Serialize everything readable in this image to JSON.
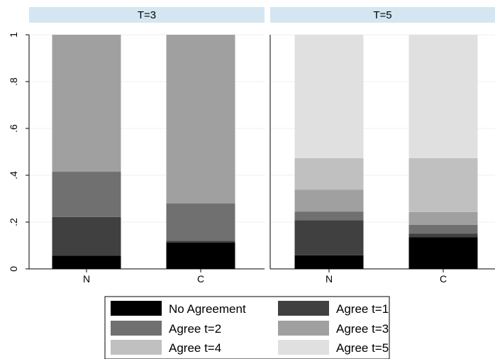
{
  "chart_data": {
    "type": "bar",
    "stacked": true,
    "ylim": [
      0,
      1
    ],
    "yticks": [
      "0",
      ".2",
      ".4",
      ".6",
      ".8",
      "1"
    ],
    "ytick_values": [
      0,
      0.2,
      0.4,
      0.6,
      0.8,
      1
    ],
    "grid": true,
    "legend_position": "bottom",
    "panels": [
      {
        "title": "T=3",
        "categories": [
          "N",
          "C"
        ]
      },
      {
        "title": "T=5",
        "categories": [
          "N",
          "C"
        ]
      }
    ],
    "series": [
      {
        "name": "No Agreement",
        "color": "#000000",
        "panel_values": [
          [
            0.057,
            0.112
          ],
          [
            0.058,
            0.135
          ]
        ]
      },
      {
        "name": "Agree t=1",
        "color": "#404040",
        "panel_values": [
          [
            0.165,
            0.008
          ],
          [
            0.15,
            0.015
          ]
        ]
      },
      {
        "name": "Agree t=2",
        "color": "#707070",
        "panel_values": [
          [
            0.193,
            0.16
          ],
          [
            0.037,
            0.038
          ]
        ]
      },
      {
        "name": "Agree t=3",
        "color": "#a0a0a0",
        "panel_values": [
          [
            0.585,
            0.72
          ],
          [
            0.093,
            0.055
          ]
        ]
      },
      {
        "name": "Agree t=4",
        "color": "#c0c0c0",
        "panel_values": [
          [
            0.0,
            0.0
          ],
          [
            0.135,
            0.23
          ]
        ]
      },
      {
        "name": "Agree t=5",
        "color": "#e0e0e0",
        "panel_values": [
          [
            0.0,
            0.0
          ],
          [
            0.527,
            0.527
          ]
        ]
      }
    ],
    "panel_header_color": "#d4e6f1",
    "grid_color": "#eaf2f3"
  }
}
